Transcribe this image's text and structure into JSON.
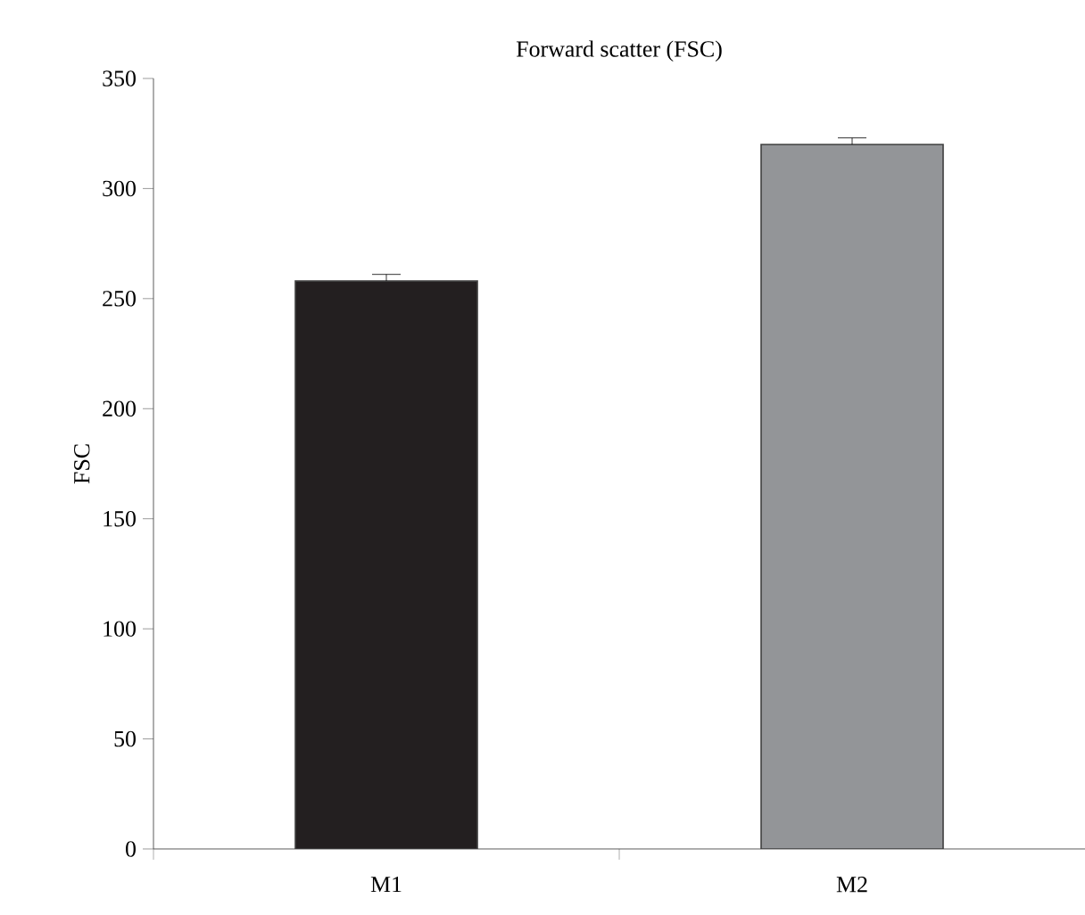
{
  "chart_data": {
    "type": "bar",
    "title": "Forward scatter (FSC)",
    "ylabel": "FSC",
    "categories": [
      "M1",
      "M2"
    ],
    "values": [
      258,
      320
    ],
    "errors": [
      3,
      3
    ],
    "colors": [
      "#231f20",
      "#939598"
    ],
    "ylim": [
      0,
      350
    ],
    "yticks": [
      0,
      50,
      100,
      150,
      200,
      250,
      300,
      350
    ],
    "grid": false
  }
}
